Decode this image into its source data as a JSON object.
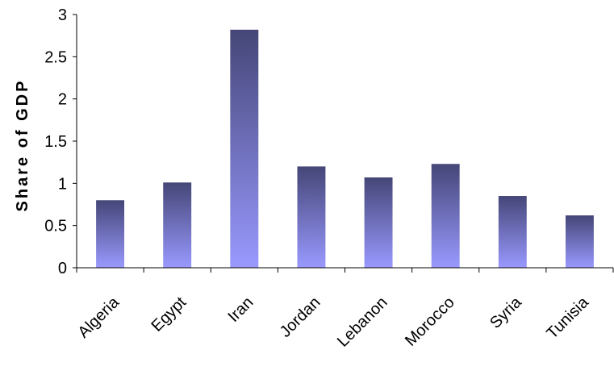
{
  "chart_data": {
    "type": "bar",
    "categories": [
      "Algeria",
      "Egypt",
      "Iran",
      "Jordan",
      "Lebanon",
      "Morocco",
      "Syria",
      "Tunisia"
    ],
    "values": [
      0.8,
      1.01,
      2.82,
      1.2,
      1.07,
      1.23,
      0.85,
      0.62
    ],
    "title": "",
    "xlabel": "",
    "ylabel": "Share of GDP",
    "ylim": [
      0,
      3
    ],
    "yticks": [
      0,
      0.5,
      1,
      1.5,
      2,
      2.5,
      3
    ],
    "ytick_labels": [
      "0",
      "0.5",
      "1",
      "1.5",
      "2",
      "2.5",
      "3"
    ],
    "grid": false,
    "legend": "none",
    "bar_gradient": {
      "top": "#454677",
      "bottom": "#9999ff"
    }
  }
}
